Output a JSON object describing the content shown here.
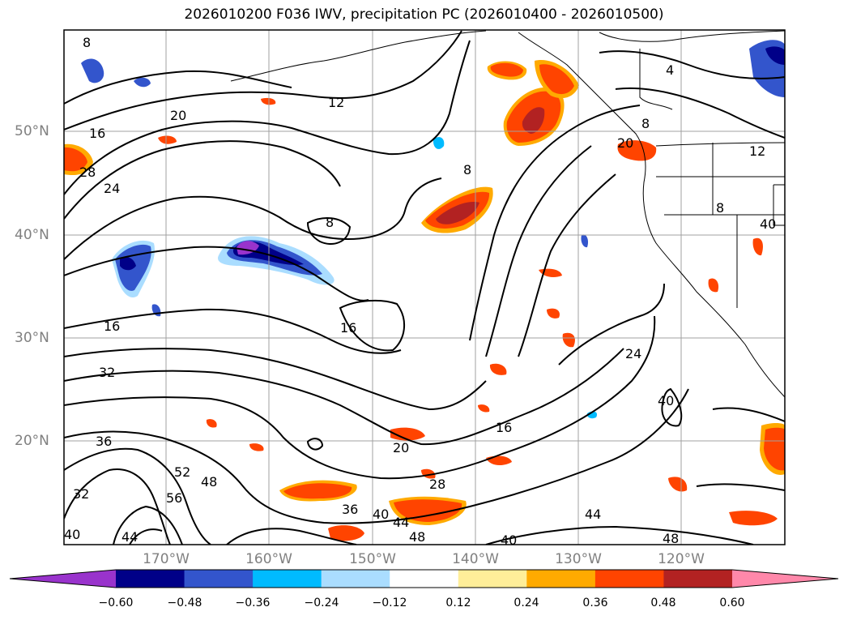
{
  "title": "2026010200 F036 IWV, precipitation PC (2026010400 - 2026010500)",
  "map": {
    "lat_labels": [
      "50°N",
      "40°N",
      "30°N",
      "20°N"
    ],
    "lon_labels": [
      "170°W",
      "160°W",
      "150°W",
      "140°W",
      "130°W",
      "120°W"
    ],
    "contour_labels": [
      "8",
      "12",
      "20",
      "16",
      "28",
      "24",
      "8",
      "8",
      "16",
      "16",
      "32",
      "20",
      "28",
      "36",
      "40",
      "44",
      "48",
      "52",
      "56",
      "48",
      "36",
      "32",
      "40",
      "44",
      "48",
      "40",
      "24",
      "40",
      "20",
      "16",
      "8",
      "4",
      "12",
      "8",
      "44",
      "40"
    ]
  },
  "colorbar": {
    "ticks": [
      "−0.60",
      "−0.48",
      "−0.36",
      "−0.24",
      "−0.12",
      "0.12",
      "0.24",
      "0.36",
      "0.48",
      "0.60"
    ],
    "colors": [
      "#9933cc",
      "#000088",
      "#3355cc",
      "#00bbff",
      "#aaddff",
      "#ffffff",
      "#ffee99",
      "#ffaa00",
      "#ff4400",
      "#b22222",
      "#ff88aa"
    ]
  }
}
